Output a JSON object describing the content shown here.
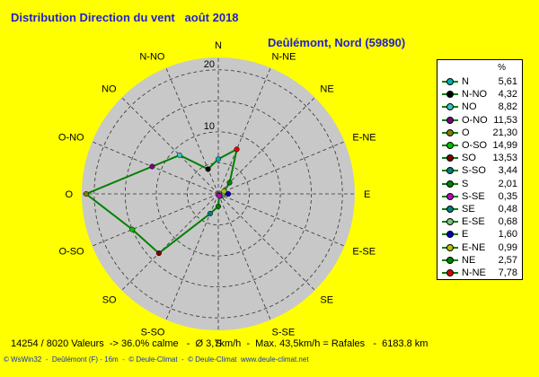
{
  "header": {
    "title": "Distribution Direction du vent   août 2018",
    "location": "Deûlémont, Nord (59890)"
  },
  "colors": {
    "background": "#ffff00",
    "plot_disc": "#c8c8c8",
    "series_line": "#008000",
    "text_blue": "#2222cc"
  },
  "legend": {
    "unit": "%"
  },
  "footer": {
    "stats": "14254 / 8020 Valeurs  -> 36.0% calme   -  Ø 3,7km/h  -  Max. 43,5km/h = Rafales   -  6183.8 km",
    "credit": "© WsWin32  -  Deûlémont (F) - 16m  -  © Deule-Climat  -  © Deule-Climat  www.deule-climat.net"
  },
  "chart_data": {
    "type": "radar",
    "unit": "%",
    "rmax": 22,
    "ring_labels": [
      10,
      20
    ],
    "grid": true,
    "legend_position": "right",
    "categories": [
      "N",
      "N-NO",
      "NO",
      "O-NO",
      "O",
      "O-SO",
      "SO",
      "S-SO",
      "S",
      "S-SE",
      "SE",
      "E-SE",
      "E",
      "E-NE",
      "NE",
      "N-NE"
    ],
    "values": [
      "5,61",
      "4,32",
      "8,82",
      "11,53",
      "21,30",
      "14,99",
      "13,53",
      "3,44",
      "2,01",
      "0,35",
      "0,48",
      "0,68",
      "1,60",
      "0,99",
      "2,57",
      "7,78"
    ],
    "numeric_values": [
      5.61,
      4.32,
      8.82,
      11.53,
      21.3,
      14.99,
      13.53,
      3.44,
      2.01,
      0.35,
      0.48,
      0.68,
      1.6,
      0.99,
      2.57,
      7.78
    ],
    "compass_order": [
      "N",
      "N-NE",
      "NE",
      "E-NE",
      "E",
      "E-SE",
      "SE",
      "S-SE",
      "S",
      "S-SO",
      "SO",
      "O-SO",
      "O",
      "O-NO",
      "NO",
      "N-NO"
    ],
    "marker_colors": {
      "N": "#00b0b0",
      "N-NO": "#000000",
      "NO": "#40c0c0",
      "O-NO": "#800080",
      "O": "#808000",
      "O-SO": "#00c000",
      "SO": "#800000",
      "S-SO": "#008080",
      "S": "#008000",
      "S-SE": "#c000c0",
      "SE": "#008080",
      "E-SE": "#80c080",
      "E": "#0000c0",
      "E-NE": "#c0c000",
      "NE": "#008000",
      "N-NE": "#e00000"
    }
  }
}
